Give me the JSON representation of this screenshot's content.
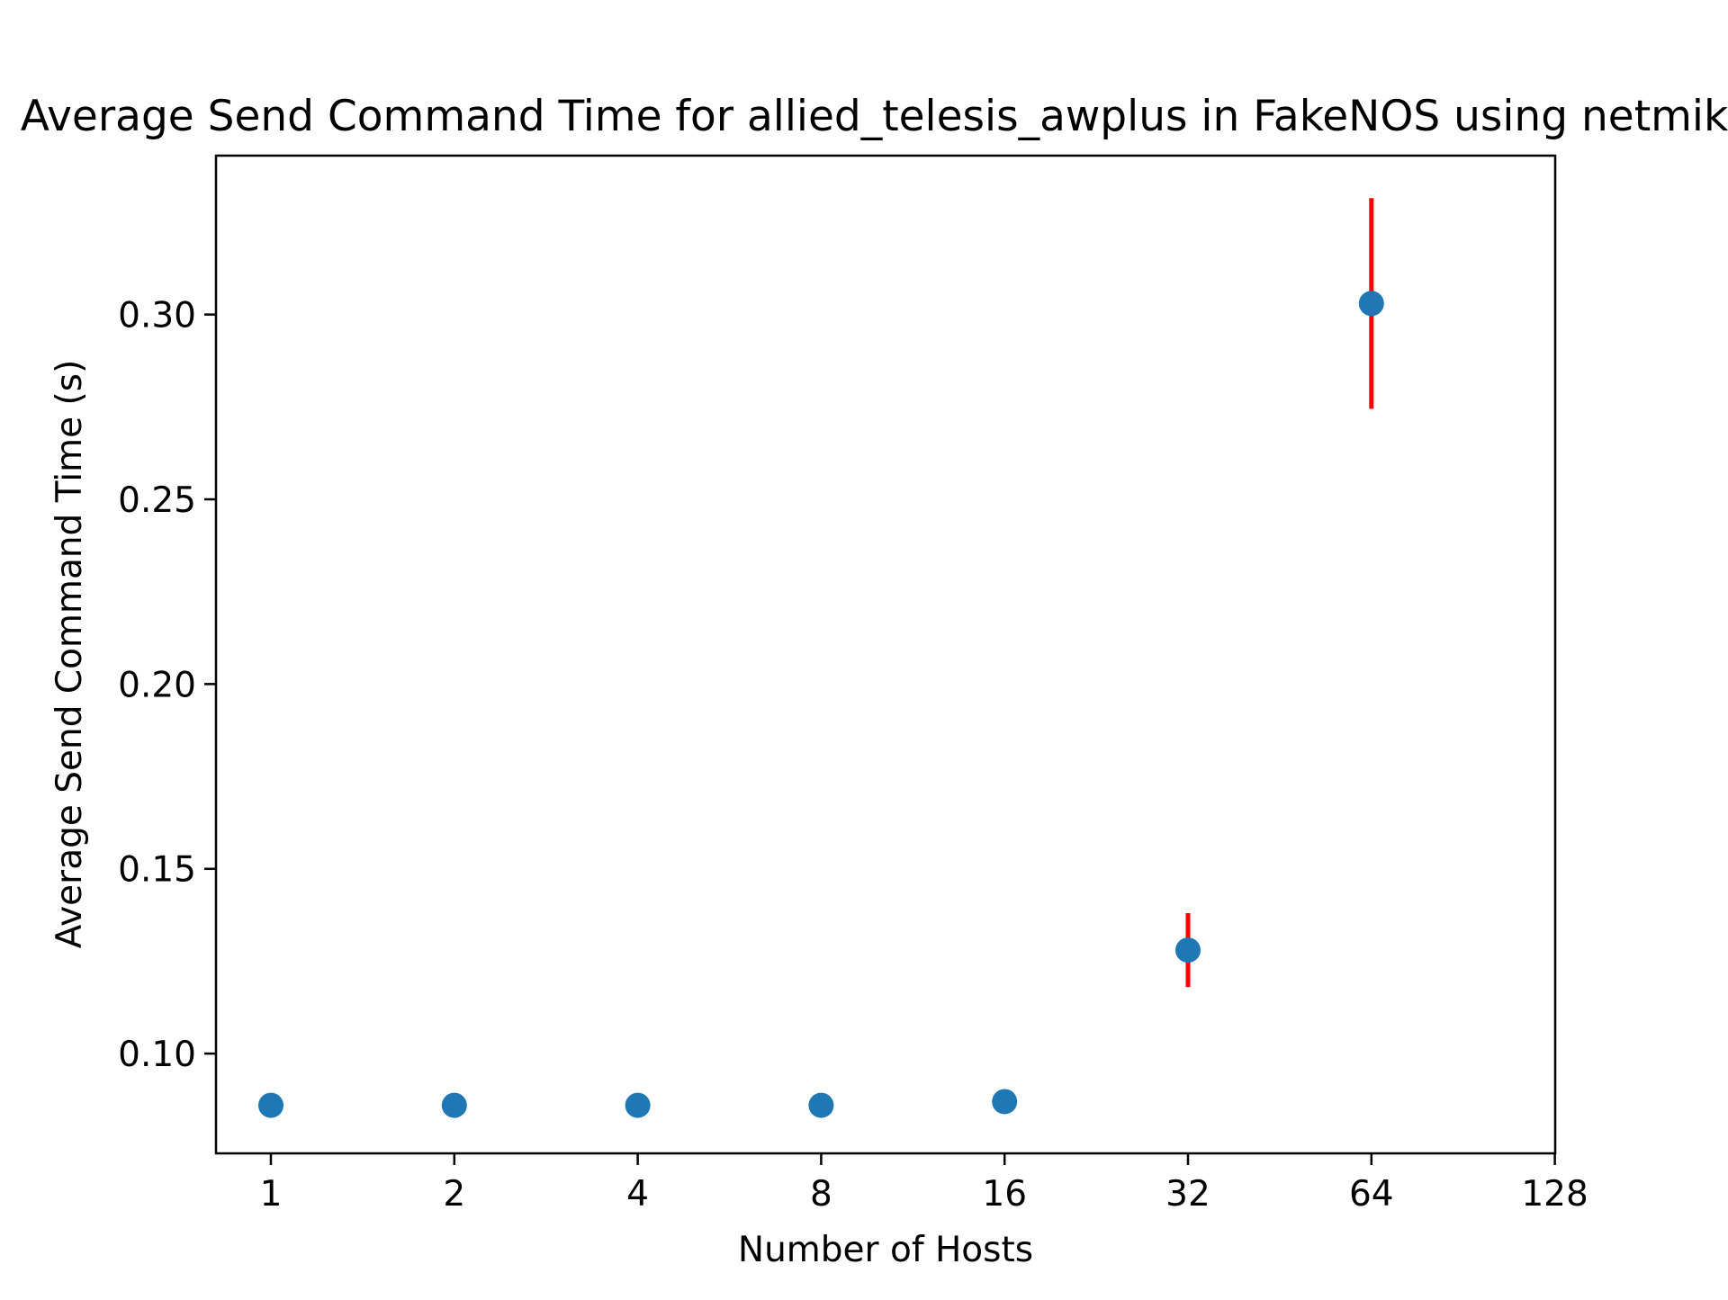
{
  "chart_data": {
    "type": "scatter",
    "title": "Average Send Command Time for allied_telesis_awplus in FakeNOS using netmiko",
    "xlabel": "Number of Hosts",
    "ylabel": "Average Send Command Time (s)",
    "x_scale": "log2",
    "x_ticks": [
      1,
      2,
      4,
      8,
      16,
      32,
      64,
      128
    ],
    "x_tick_labels": [
      "1",
      "2",
      "4",
      "8",
      "16",
      "32",
      "64",
      "128"
    ],
    "y_ticks": [
      0.1,
      0.15,
      0.2,
      0.25,
      0.3
    ],
    "y_tick_labels": [
      "0.10",
      "0.15",
      "0.20",
      "0.25",
      "0.30"
    ],
    "ylim": [
      0.073,
      0.343
    ],
    "grid": false,
    "series": [
      {
        "points": [
          {
            "x": 1,
            "y": 0.086,
            "err": 0.0
          },
          {
            "x": 2,
            "y": 0.086,
            "err": 0.0
          },
          {
            "x": 4,
            "y": 0.086,
            "err": 0.0
          },
          {
            "x": 8,
            "y": 0.086,
            "err": 0.0
          },
          {
            "x": 16,
            "y": 0.087,
            "err": 0.0
          },
          {
            "x": 32,
            "y": 0.128,
            "err": 0.01
          },
          {
            "x": 64,
            "y": 0.303,
            "err": 0.0285
          }
        ]
      }
    ],
    "colors": {
      "marker": "#1f77b4",
      "errorbar": "#ff0000",
      "axes": "#000000"
    }
  }
}
